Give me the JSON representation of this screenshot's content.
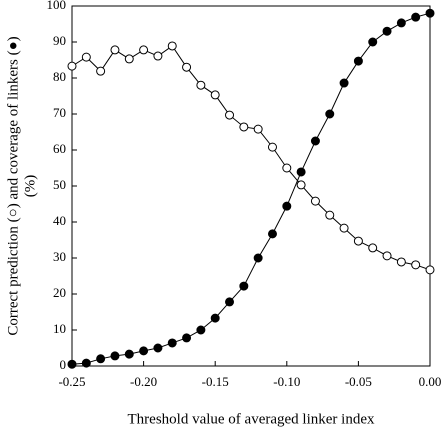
{
  "chart_data": {
    "type": "line",
    "xlabel": "Threshold value of averaged linker index",
    "ylabel": [
      "Correct prediction (○) and coverage of linkers (●)",
      "(%)"
    ],
    "x": [
      -0.25,
      -0.24,
      -0.23,
      -0.22,
      -0.21,
      -0.2,
      -0.19,
      -0.18,
      -0.17,
      -0.16,
      -0.15,
      -0.14,
      -0.13,
      -0.12,
      -0.11,
      -0.1,
      -0.09,
      -0.08,
      -0.07,
      -0.06,
      -0.05,
      -0.04,
      -0.03,
      -0.02,
      -0.01,
      0
    ],
    "series": [
      {
        "color": "#000000",
        "marker_fill": "#ffffff",
        "values": [
          83.3,
          85.8,
          81.9,
          87.8,
          85.3,
          87.8,
          86.1,
          88.9,
          83,
          78,
          75.3,
          69.7,
          66.4,
          65.8,
          60.8,
          55,
          50.3,
          45.8,
          41.9,
          38.3,
          34.7,
          32.8,
          30.6,
          28.9,
          28.1,
          26.7
        ]
      },
      {
        "color": "#000000",
        "marker_fill": "#000000",
        "values": [
          0.5,
          0.8,
          2,
          2.8,
          3.3,
          4.2,
          5,
          6.4,
          7.8,
          10,
          13.3,
          17.8,
          22.2,
          30,
          36.7,
          44.4,
          53.9,
          62.5,
          70,
          78.6,
          84.7,
          90,
          93,
          95.3,
          96.9,
          98
        ]
      }
    ],
    "xlim": [
      -0.25,
      0
    ],
    "xticks": [
      -0.25,
      {
        "value": -0.2,
        "label": "-0.20"
      },
      -0.15,
      {
        "value": -0.1,
        "label": "-0.10"
      },
      -0.05,
      {
        "value": 0,
        "label": "0.00"
      }
    ],
    "ylim": [
      0,
      100
    ],
    "yticks": [
      0,
      10,
      20,
      30,
      40,
      50,
      60,
      70,
      80,
      90,
      100
    ]
  }
}
